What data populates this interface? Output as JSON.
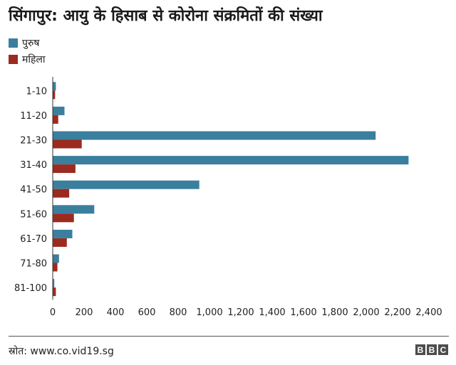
{
  "title": "सिंगापुर: आयु के हिसाब से कोरोना संक्रमितों की संख्या",
  "source": "स्रोत: www.co.vid19.sg",
  "logo": [
    "B",
    "B",
    "C"
  ],
  "chart_data": {
    "type": "bar",
    "orientation": "horizontal",
    "title": "सिंगापुर: आयु के हिसाब से कोरोना संक्रमितों की संख्या",
    "categories": [
      "1-10",
      "11-20",
      "21-30",
      "31-40",
      "41-50",
      "51-60",
      "61-70",
      "71-80",
      "81-100"
    ],
    "series": [
      {
        "name": "पुरुष",
        "color": "#3a7f9e",
        "values": [
          20,
          75,
          2060,
          2270,
          935,
          265,
          125,
          40,
          10
        ]
      },
      {
        "name": "महिला",
        "color": "#9c2a1f",
        "values": [
          15,
          35,
          185,
          145,
          105,
          135,
          90,
          30,
          20
        ]
      }
    ],
    "xlim": [
      0,
      2400
    ],
    "xticks": [
      0,
      200,
      400,
      600,
      800,
      1000,
      1200,
      1400,
      1600,
      1800,
      2000,
      2200,
      2400
    ],
    "xtick_labels": [
      "0",
      "200",
      "400",
      "600",
      "800",
      "1,000",
      "1,200",
      "1,400",
      "1,600",
      "1,800",
      "2,000",
      "2,200",
      "2,400"
    ],
    "grid": false,
    "legend_position": "top-left"
  }
}
